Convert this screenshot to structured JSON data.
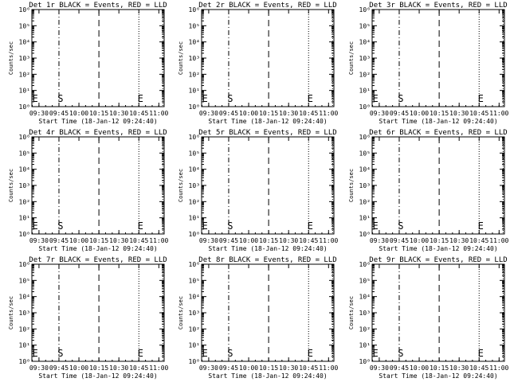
{
  "colors": {
    "background": "#ffffff",
    "foreground": "#000000"
  },
  "chart_data": [
    {
      "type": "line",
      "title": "Det 1r BLACK = Events, RED = LLD",
      "ylabel": "Counts/sec",
      "xlabel": "Start Time (18-Jan-12 09:24:40)",
      "x_ticks": [
        "09:30",
        "09:45",
        "10:00",
        "10:15",
        "10:30",
        "10:45",
        "11:00"
      ],
      "y_ticks": [
        "10⁰",
        "10¹",
        "10²",
        "10³",
        "10⁴",
        "10⁵",
        "10⁶"
      ],
      "yscale": "log",
      "ylim": [
        1,
        1000000
      ],
      "xlim": [
        "09:24:40",
        "11:04"
      ],
      "grid": false,
      "series": [],
      "markers": [
        {
          "label": "S",
          "x": "09:44"
        },
        {
          "label": "E",
          "x": "10:44"
        },
        {
          "label": "E",
          "x": "09:25"
        }
      ]
    },
    {
      "type": "line",
      "title": "Det 2r BLACK = Events, RED = LLD",
      "ylabel": "Counts/sec",
      "xlabel": "Start Time (18-Jan-12 09:24:40)",
      "x_ticks": [
        "09:30",
        "09:45",
        "10:00",
        "10:15",
        "10:30",
        "10:45",
        "11:00"
      ],
      "y_ticks": [
        "10⁰",
        "10¹",
        "10²",
        "10³",
        "10⁴",
        "10⁵",
        "10⁶"
      ],
      "yscale": "log",
      "ylim": [
        1,
        1000000
      ],
      "xlim": [
        "09:24:40",
        "11:04"
      ],
      "grid": false,
      "series": [],
      "markers": [
        {
          "label": "S",
          "x": "09:44"
        },
        {
          "label": "E",
          "x": "10:44"
        },
        {
          "label": "E",
          "x": "09:25"
        }
      ]
    },
    {
      "type": "line",
      "title": "Det 3r BLACK = Events, RED = LLD",
      "ylabel": "Counts/sec",
      "xlabel": "Start Time (18-Jan-12 09:24:40)",
      "x_ticks": [
        "09:30",
        "09:45",
        "10:00",
        "10:15",
        "10:30",
        "10:45",
        "11:00"
      ],
      "y_ticks": [
        "10⁰",
        "10¹",
        "10²",
        "10³",
        "10⁴",
        "10⁵",
        "10⁶"
      ],
      "yscale": "log",
      "ylim": [
        1,
        1000000
      ],
      "xlim": [
        "09:24:40",
        "11:04"
      ],
      "grid": false,
      "series": [],
      "markers": [
        {
          "label": "S",
          "x": "09:44"
        },
        {
          "label": "E",
          "x": "10:44"
        },
        {
          "label": "E",
          "x": "09:25"
        }
      ]
    },
    {
      "type": "line",
      "title": "Det 4r BLACK = Events, RED = LLD",
      "ylabel": "Counts/sec",
      "xlabel": "Start Time (18-Jan-12 09:24:40)",
      "x_ticks": [
        "09:30",
        "09:45",
        "10:00",
        "10:15",
        "10:30",
        "10:45",
        "11:00"
      ],
      "y_ticks": [
        "10⁰",
        "10¹",
        "10²",
        "10³",
        "10⁴",
        "10⁵",
        "10⁶"
      ],
      "yscale": "log",
      "ylim": [
        1,
        1000000
      ],
      "xlim": [
        "09:24:40",
        "11:04"
      ],
      "grid": false,
      "series": [],
      "markers": [
        {
          "label": "S",
          "x": "09:44"
        },
        {
          "label": "E",
          "x": "10:44"
        },
        {
          "label": "E",
          "x": "09:25"
        }
      ]
    },
    {
      "type": "line",
      "title": "Det 5r BLACK = Events, RED = LLD",
      "ylabel": "Counts/sec",
      "xlabel": "Start Time (18-Jan-12 09:24:40)",
      "x_ticks": [
        "09:30",
        "09:45",
        "10:00",
        "10:15",
        "10:30",
        "10:45",
        "11:00"
      ],
      "y_ticks": [
        "10⁰",
        "10¹",
        "10²",
        "10³",
        "10⁴",
        "10⁵",
        "10⁶"
      ],
      "yscale": "log",
      "ylim": [
        1,
        1000000
      ],
      "xlim": [
        "09:24:40",
        "11:04"
      ],
      "grid": false,
      "series": [],
      "markers": [
        {
          "label": "S",
          "x": "09:44"
        },
        {
          "label": "E",
          "x": "10:44"
        },
        {
          "label": "E",
          "x": "09:25"
        }
      ]
    },
    {
      "type": "line",
      "title": "Det 6r BLACK = Events, RED = LLD",
      "ylabel": "Counts/sec",
      "xlabel": "Start Time (18-Jan-12 09:24:40)",
      "x_ticks": [
        "09:30",
        "09:45",
        "10:00",
        "10:15",
        "10:30",
        "10:45",
        "11:00"
      ],
      "y_ticks": [
        "10⁰",
        "10¹",
        "10²",
        "10³",
        "10⁴",
        "10⁵",
        "10⁶"
      ],
      "yscale": "log",
      "ylim": [
        1,
        1000000
      ],
      "xlim": [
        "09:24:40",
        "11:04"
      ],
      "grid": false,
      "series": [],
      "markers": [
        {
          "label": "S",
          "x": "09:44"
        },
        {
          "label": "E",
          "x": "10:44"
        },
        {
          "label": "E",
          "x": "09:25"
        }
      ]
    },
    {
      "type": "line",
      "title": "Det 7r BLACK = Events, RED = LLD",
      "ylabel": "Counts/sec",
      "xlabel": "Start Time (18-Jan-12 09:24:40)",
      "x_ticks": [
        "09:30",
        "09:45",
        "10:00",
        "10:15",
        "10:30",
        "10:45",
        "11:00"
      ],
      "y_ticks": [
        "10⁰",
        "10¹",
        "10²",
        "10³",
        "10⁴",
        "10⁵",
        "10⁶"
      ],
      "yscale": "log",
      "ylim": [
        1,
        1000000
      ],
      "xlim": [
        "09:24:40",
        "11:04"
      ],
      "grid": false,
      "series": [],
      "markers": [
        {
          "label": "S",
          "x": "09:44"
        },
        {
          "label": "E",
          "x": "10:44"
        },
        {
          "label": "E",
          "x": "09:25"
        }
      ]
    },
    {
      "type": "line",
      "title": "Det 8r BLACK = Events, RED = LLD",
      "ylabel": "Counts/sec",
      "xlabel": "Start Time (18-Jan-12 09:24:40)",
      "x_ticks": [
        "09:30",
        "09:45",
        "10:00",
        "10:15",
        "10:30",
        "10:45",
        "11:00"
      ],
      "y_ticks": [
        "10⁰",
        "10¹",
        "10²",
        "10³",
        "10⁴",
        "10⁵",
        "10⁶"
      ],
      "yscale": "log",
      "ylim": [
        1,
        1000000
      ],
      "xlim": [
        "09:24:40",
        "11:04"
      ],
      "grid": false,
      "series": [],
      "markers": [
        {
          "label": "S",
          "x": "09:44"
        },
        {
          "label": "E",
          "x": "10:44"
        },
        {
          "label": "E",
          "x": "09:25"
        }
      ]
    },
    {
      "type": "line",
      "title": "Det 9r BLACK = Events, RED = LLD",
      "ylabel": "Counts/sec",
      "xlabel": "Start Time (18-Jan-12 09:24:40)",
      "x_ticks": [
        "09:30",
        "09:45",
        "10:00",
        "10:15",
        "10:30",
        "10:45",
        "11:00"
      ],
      "y_ticks": [
        "10⁰",
        "10¹",
        "10²",
        "10³",
        "10⁴",
        "10⁵",
        "10⁶"
      ],
      "yscale": "log",
      "ylim": [
        1,
        1000000
      ],
      "xlim": [
        "09:24:40",
        "11:04"
      ],
      "grid": false,
      "series": [],
      "markers": [
        {
          "label": "S",
          "x": "09:44"
        },
        {
          "label": "E",
          "x": "10:44"
        },
        {
          "label": "E",
          "x": "09:25"
        }
      ]
    }
  ]
}
